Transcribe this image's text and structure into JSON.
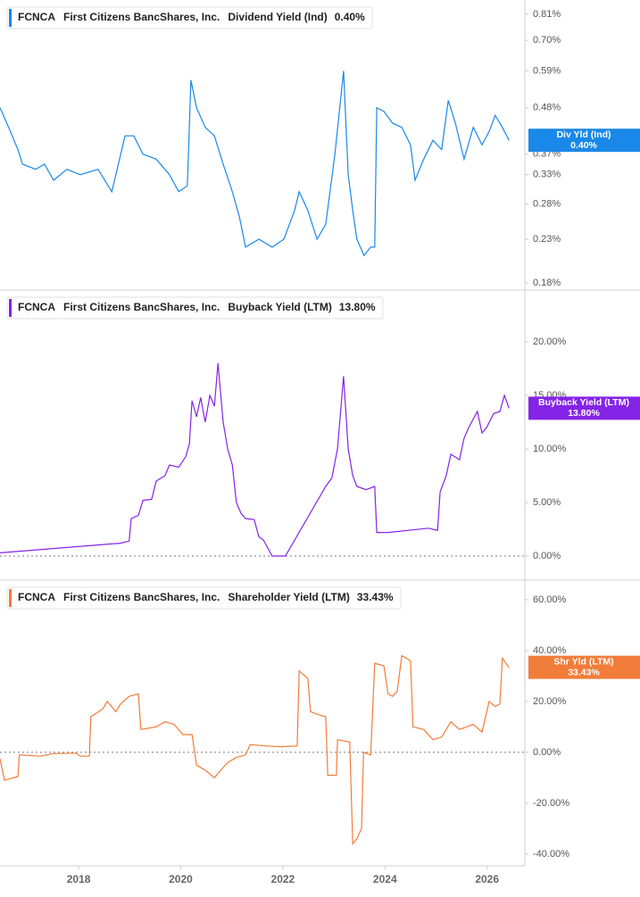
{
  "chart_data": [
    {
      "type": "line",
      "ticker": "FCNCA",
      "company": "First Citizens BancShares, Inc.",
      "log_scale": true,
      "xlim": [
        2016.46,
        2026.74
      ],
      "ylim": [
        0.173,
        0.877
      ],
      "yticks": [
        {
          "value": 0.18,
          "label": "0.18%"
        },
        {
          "value": 0.23,
          "label": "0.23%"
        },
        {
          "value": 0.28,
          "label": "0.28%"
        },
        {
          "value": 0.33,
          "label": "0.33%"
        },
        {
          "value": 0.37,
          "label": "0.37%"
        },
        {
          "value": 0.48,
          "label": "0.48%"
        },
        {
          "value": 0.59,
          "label": "0.59%"
        },
        {
          "value": 0.7,
          "label": "0.70%"
        },
        {
          "value": 0.81,
          "label": "0.81%"
        }
      ],
      "series": [
        {
          "name": "Dividend Yield (Ind)",
          "short_name": "Div Yld (Ind)",
          "color": "#1a88e8",
          "last_value": 0.4,
          "last_value_label": "0.40%",
          "x": [
            2016.46,
            2016.63,
            2016.81,
            2016.9,
            2017.16,
            2017.33,
            2017.51,
            2017.77,
            2018.03,
            2018.38,
            2018.65,
            2018.91,
            2019.08,
            2019.26,
            2019.52,
            2019.78,
            2019.96,
            2020.13,
            2020.2,
            2020.31,
            2020.48,
            2020.66,
            2020.83,
            2021.01,
            2021.15,
            2021.27,
            2021.53,
            2021.79,
            2022.02,
            2022.23,
            2022.32,
            2022.49,
            2022.67,
            2022.84,
            2023.02,
            2023.19,
            2023.28,
            2023.37,
            2023.45,
            2023.59,
            2023.72,
            2023.8,
            2023.84,
            2023.98,
            2024.15,
            2024.33,
            2024.5,
            2024.59,
            2024.76,
            2024.94,
            2025.11,
            2025.24,
            2025.38,
            2025.55,
            2025.73,
            2025.9,
            2026.04,
            2026.16,
            2026.3,
            2026.43
          ],
          "values": [
            0.48,
            0.43,
            0.38,
            0.35,
            0.34,
            0.35,
            0.32,
            0.34,
            0.33,
            0.34,
            0.3,
            0.41,
            0.41,
            0.37,
            0.36,
            0.33,
            0.3,
            0.31,
            0.56,
            0.48,
            0.43,
            0.41,
            0.35,
            0.3,
            0.26,
            0.22,
            0.23,
            0.22,
            0.23,
            0.27,
            0.3,
            0.27,
            0.23,
            0.25,
            0.37,
            0.59,
            0.33,
            0.27,
            0.23,
            0.21,
            0.22,
            0.22,
            0.48,
            0.47,
            0.44,
            0.43,
            0.39,
            0.32,
            0.36,
            0.4,
            0.38,
            0.5,
            0.44,
            0.36,
            0.43,
            0.39,
            0.42,
            0.46,
            0.43,
            0.4
          ]
        }
      ]
    },
    {
      "type": "line",
      "ticker": "FCNCA",
      "company": "First Citizens BancShares, Inc.",
      "zero_line": true,
      "xlim": [
        2016.46,
        2026.74
      ],
      "ylim": [
        -2.25,
        24.83
      ],
      "yticks": [
        {
          "value": 0,
          "label": "0.00%"
        },
        {
          "value": 5,
          "label": "5.00%"
        },
        {
          "value": 10,
          "label": "10.00%"
        },
        {
          "value": 15,
          "label": "15.00%"
        },
        {
          "value": 20,
          "label": "20.00%"
        }
      ],
      "series": [
        {
          "name": "Buyback Yield (LTM)",
          "short_name": "Buyback Yield (LTM)",
          "color": "#8424e6",
          "last_value": 13.8,
          "last_value_label": "13.80%",
          "x": [
            2016.46,
            2018.82,
            2018.99,
            2019.03,
            2019.17,
            2019.26,
            2019.43,
            2019.52,
            2019.69,
            2019.78,
            2019.96,
            2020.1,
            2020.17,
            2020.22,
            2020.31,
            2020.39,
            2020.48,
            2020.57,
            2020.66,
            2020.73,
            2020.83,
            2020.92,
            2021.01,
            2021.09,
            2021.18,
            2021.27,
            2021.44,
            2021.53,
            2021.62,
            2021.79,
            2022.05,
            2022.84,
            2022.96,
            2023.07,
            2023.14,
            2023.19,
            2023.28,
            2023.37,
            2023.45,
            2023.63,
            2023.8,
            2023.84,
            2024.06,
            2024.85,
            2025.03,
            2025.08,
            2025.2,
            2025.29,
            2025.46,
            2025.55,
            2025.64,
            2025.81,
            2025.9,
            2025.99,
            2026.13,
            2026.25,
            2026.34,
            2026.43
          ],
          "values": [
            0.3,
            1.2,
            1.4,
            3.5,
            3.8,
            5.2,
            5.3,
            7.0,
            7.5,
            8.5,
            8.3,
            9.3,
            10.5,
            14.5,
            13.0,
            14.8,
            12.5,
            15.0,
            14.0,
            18.0,
            12.5,
            10.0,
            8.5,
            5.0,
            4.0,
            3.5,
            3.4,
            1.8,
            1.5,
            0.0,
            0.0,
            6.5,
            7.3,
            10.0,
            14.0,
            16.8,
            10.0,
            7.5,
            6.5,
            6.2,
            6.5,
            2.2,
            2.2,
            2.6,
            2.4,
            6.0,
            7.5,
            9.5,
            9.0,
            11.0,
            12.0,
            13.5,
            11.5,
            12.0,
            13.3,
            13.5,
            15.0,
            13.8
          ]
        }
      ]
    },
    {
      "type": "line",
      "ticker": "FCNCA",
      "company": "First Citizens BancShares, Inc.",
      "zero_line": true,
      "xlim": [
        2016.46,
        2026.74
      ],
      "ylim": [
        -44.6,
        67.7
      ],
      "xticks": [
        2018,
        2020,
        2022,
        2024,
        2026
      ],
      "yticks": [
        {
          "value": -40,
          "label": "-40.00%"
        },
        {
          "value": -20,
          "label": "-20.00%"
        },
        {
          "value": 0,
          "label": "0.00%"
        },
        {
          "value": 20,
          "label": "20.00%"
        },
        {
          "value": 40,
          "label": "40.00%"
        },
        {
          "value": 60,
          "label": "60.00%"
        }
      ],
      "series": [
        {
          "name": "Shareholder Yield (LTM)",
          "short_name": "Shr Yld (LTM)",
          "color": "#f27c3a",
          "last_value": 33.43,
          "last_value_label": "33.43%",
          "x": [
            2016.46,
            2016.55,
            2016.81,
            2016.84,
            2017.25,
            2017.51,
            2017.95,
            2018.03,
            2018.21,
            2018.24,
            2018.47,
            2018.56,
            2018.73,
            2018.82,
            2018.99,
            2019.17,
            2019.22,
            2019.52,
            2019.69,
            2019.87,
            2020.04,
            2020.22,
            2020.31,
            2020.48,
            2020.66,
            2020.74,
            2020.92,
            2021.09,
            2021.27,
            2021.36,
            2021.7,
            2021.97,
            2022.28,
            2022.32,
            2022.49,
            2022.54,
            2022.67,
            2022.84,
            2022.88,
            2023.05,
            2023.07,
            2023.31,
            2023.37,
            2023.45,
            2023.54,
            2023.58,
            2023.72,
            2023.8,
            2023.98,
            2024.06,
            2024.15,
            2024.24,
            2024.33,
            2024.5,
            2024.55,
            2024.76,
            2024.94,
            2025.11,
            2025.29,
            2025.46,
            2025.73,
            2025.9,
            2026.04,
            2026.16,
            2026.25,
            2026.3,
            2026.37,
            2026.43
          ],
          "values": [
            -2.5,
            -11,
            -9.5,
            -1,
            -1.5,
            -0.5,
            -0.3,
            -1.5,
            -1.5,
            14,
            17,
            20,
            16,
            19,
            22,
            23,
            9,
            10,
            12,
            11,
            7,
            7,
            -5,
            -7,
            -10,
            -8,
            -4,
            -2,
            -1,
            3,
            2.5,
            2.2,
            2.5,
            32,
            29,
            16,
            15,
            14,
            -9,
            -9,
            5,
            4,
            -36,
            -34,
            -30,
            0,
            -1,
            35,
            34,
            23,
            22,
            24,
            38,
            36,
            10,
            9,
            5,
            6,
            12,
            9,
            11,
            8,
            20,
            18,
            19,
            37,
            35,
            33.43
          ]
        }
      ]
    }
  ]
}
